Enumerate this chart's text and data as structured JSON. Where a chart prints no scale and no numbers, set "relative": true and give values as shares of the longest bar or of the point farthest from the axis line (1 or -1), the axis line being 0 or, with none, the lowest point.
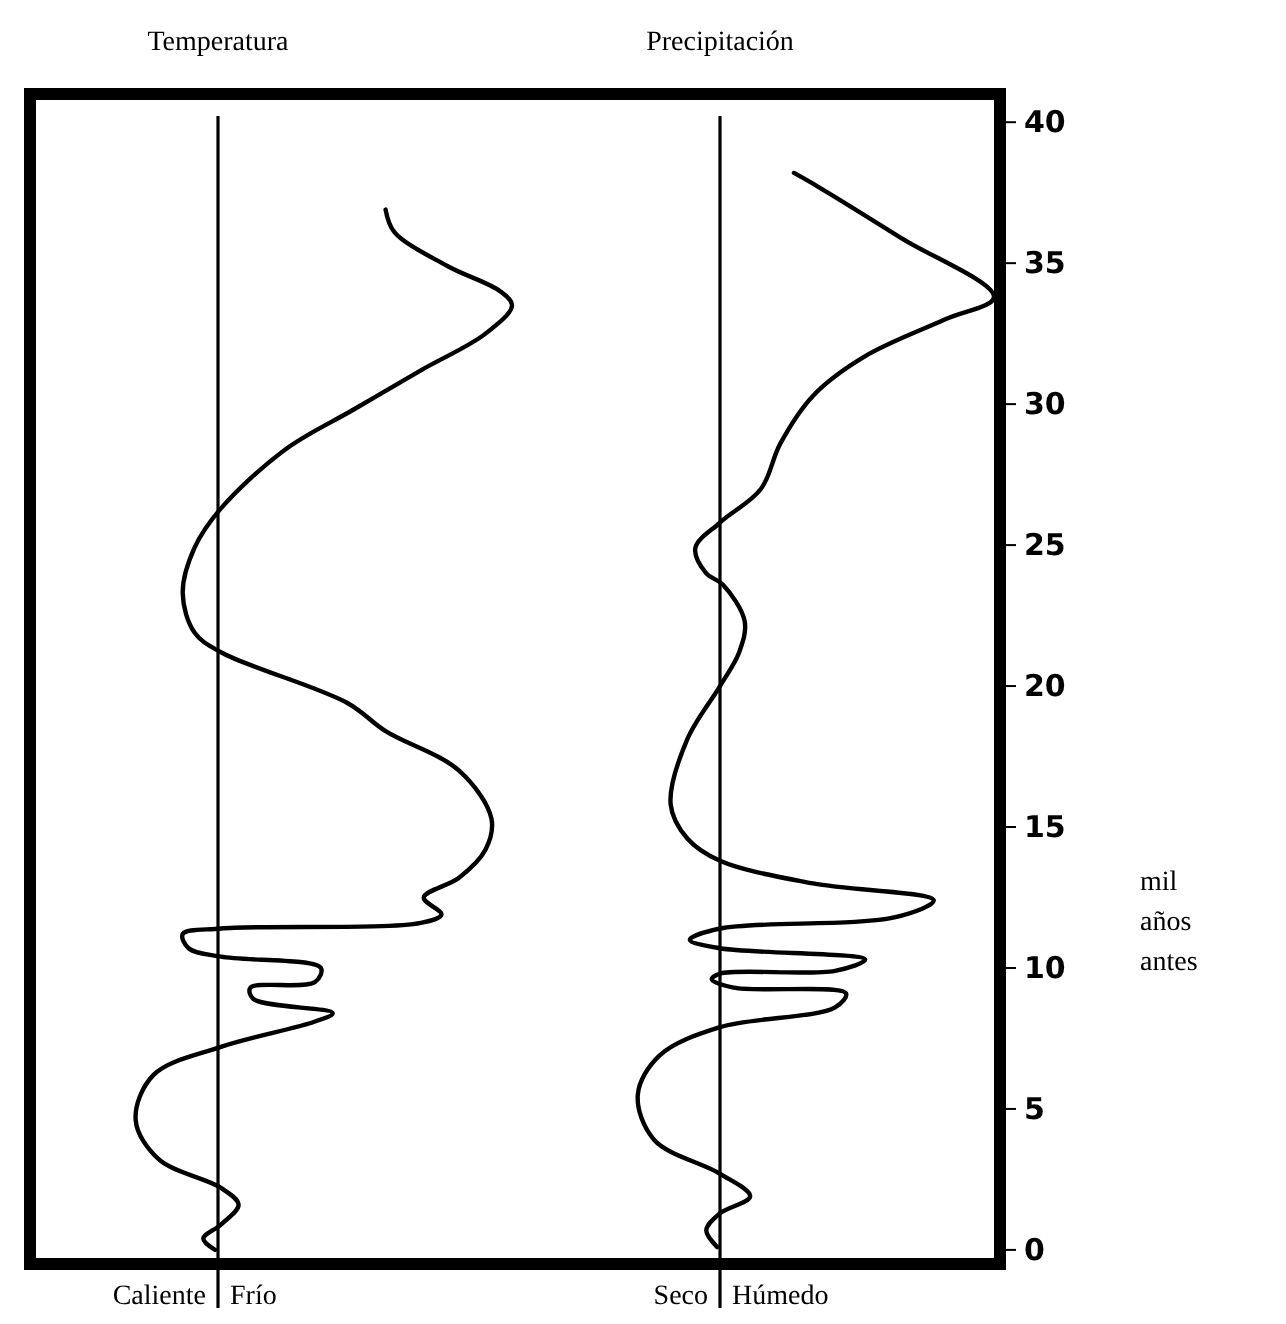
{
  "chart_data": [
    {
      "type": "line",
      "orientation": "horizontal",
      "relative": true,
      "title": "Temperatura",
      "annotations": [
        "Caliente",
        "Frío"
      ],
      "ylim": [
        -0.5,
        41
      ],
      "tick_labels": false,
      "series": [
        {
          "color": "#000000",
          "x": [
            36.9,
            36.1,
            34.9,
            34.0,
            33.5,
            32.5,
            31.2,
            29.8,
            28.4,
            26.3,
            24.9,
            23.3,
            21.9,
            21.2,
            19.4,
            18.4,
            17.0,
            15.3,
            14.2,
            13.2,
            12.5,
            11.9,
            11.6,
            11.4,
            11.2,
            10.7,
            10.4,
            10.0,
            9.5,
            9.3,
            8.9,
            8.4,
            8.1,
            7.2,
            6.2,
            4.6,
            3.2,
            2.2,
            1.6,
            0.9,
            0.4,
            0
          ],
          "values": [
            0.57,
            0.6,
            0.78,
            0.96,
            1,
            0.91,
            0.69,
            0.46,
            0.23,
            0.01,
            -0.08,
            -0.12,
            -0.08,
            0.01,
            0.44,
            0.57,
            0.82,
            0.93,
            0.91,
            0.82,
            0.7,
            0.76,
            0.69,
            0.01,
            -0.12,
            -0.1,
            0.01,
            0.35,
            0.33,
            0.11,
            0.12,
            0.39,
            0.33,
            0.01,
            -0.22,
            -0.28,
            -0.2,
            0.01,
            0.07,
            0.01,
            -0.05,
            -0.01
          ]
        }
      ]
    },
    {
      "type": "line",
      "orientation": "horizontal",
      "relative": true,
      "title": "Precipitación",
      "annotations": [
        "Seco",
        "Húmedo"
      ],
      "ylabel": "mil años antes",
      "ylim": [
        -0.5,
        41
      ],
      "yticks": [
        0,
        5,
        10,
        15,
        20,
        25,
        30,
        35,
        40
      ],
      "tick_labels": "y",
      "series": [
        {
          "color": "#000000",
          "x": [
            38.2,
            37.7,
            35.9,
            33.8,
            33.0,
            31.7,
            30.3,
            28.6,
            27.0,
            25.8,
            24.9,
            24.0,
            23.6,
            22.3,
            21.2,
            20.0,
            18.1,
            15.8,
            14.6,
            13.8,
            13.0,
            12.4,
            11.8,
            11.4,
            11.0,
            10.7,
            10.3,
            9.9,
            9.8,
            9.6,
            9.3,
            9.1,
            8.6,
            7.9,
            6.9,
            5.5,
            3.9,
            2.7,
            1.9,
            1.3,
            0.7,
            0.1
          ],
          "values": [
            0.27,
            0.36,
            0.66,
            1,
            0.82,
            0.53,
            0.34,
            0.22,
            0.15,
            0,
            -0.09,
            -0.05,
            0.01,
            0.09,
            0.07,
            0,
            -0.12,
            -0.18,
            -0.12,
            0,
            0.34,
            0.78,
            0.64,
            0,
            -0.11,
            0,
            0.53,
            0.42,
            0,
            -0.03,
            0.05,
            0.46,
            0.42,
            0,
            -0.22,
            -0.3,
            -0.24,
            0,
            0.11,
            0,
            -0.05,
            -0.01
          ]
        }
      ]
    }
  ]
}
